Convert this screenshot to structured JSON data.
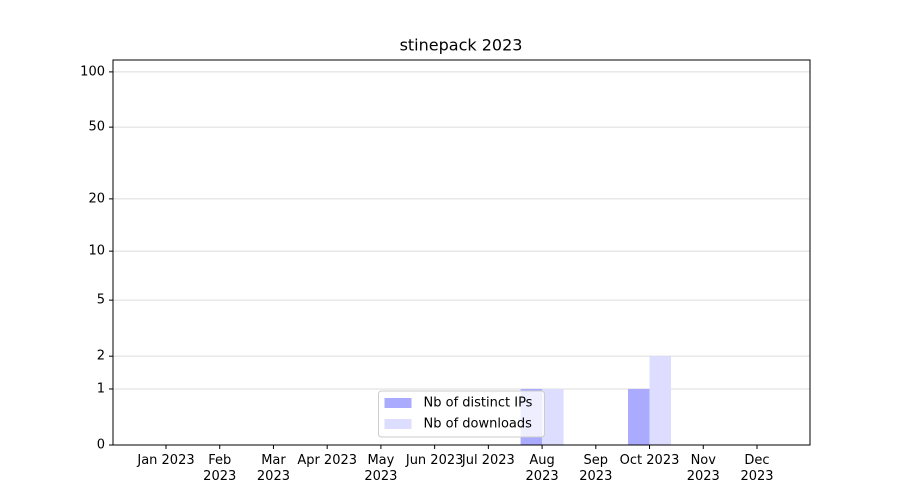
{
  "chart_data": {
    "type": "bar",
    "title": "stinepack 2023",
    "categories": [
      "Jan 2023",
      "Feb 2023",
      "Mar 2023",
      "Apr 2023",
      "May 2023",
      "Jun 2023",
      "Jul 2023",
      "Aug 2023",
      "Sep 2023",
      "Oct 2023",
      "Nov 2023",
      "Dec 2023"
    ],
    "series": [
      {
        "name": "Nb of distinct IPs",
        "color": "#aaaaff",
        "values": [
          0,
          0,
          0,
          0,
          0,
          0,
          0,
          1,
          0,
          1,
          0,
          0
        ]
      },
      {
        "name": "Nb of downloads",
        "color": "#ddddff",
        "values": [
          0,
          0,
          0,
          0,
          0,
          0,
          0,
          1,
          0,
          2,
          0,
          0
        ]
      }
    ],
    "yscale": "log1p",
    "ylim": [
      0,
      116
    ],
    "yticks": [
      0,
      1,
      2,
      5,
      10,
      20,
      50,
      100
    ],
    "grid": true,
    "legend": "lower center"
  }
}
